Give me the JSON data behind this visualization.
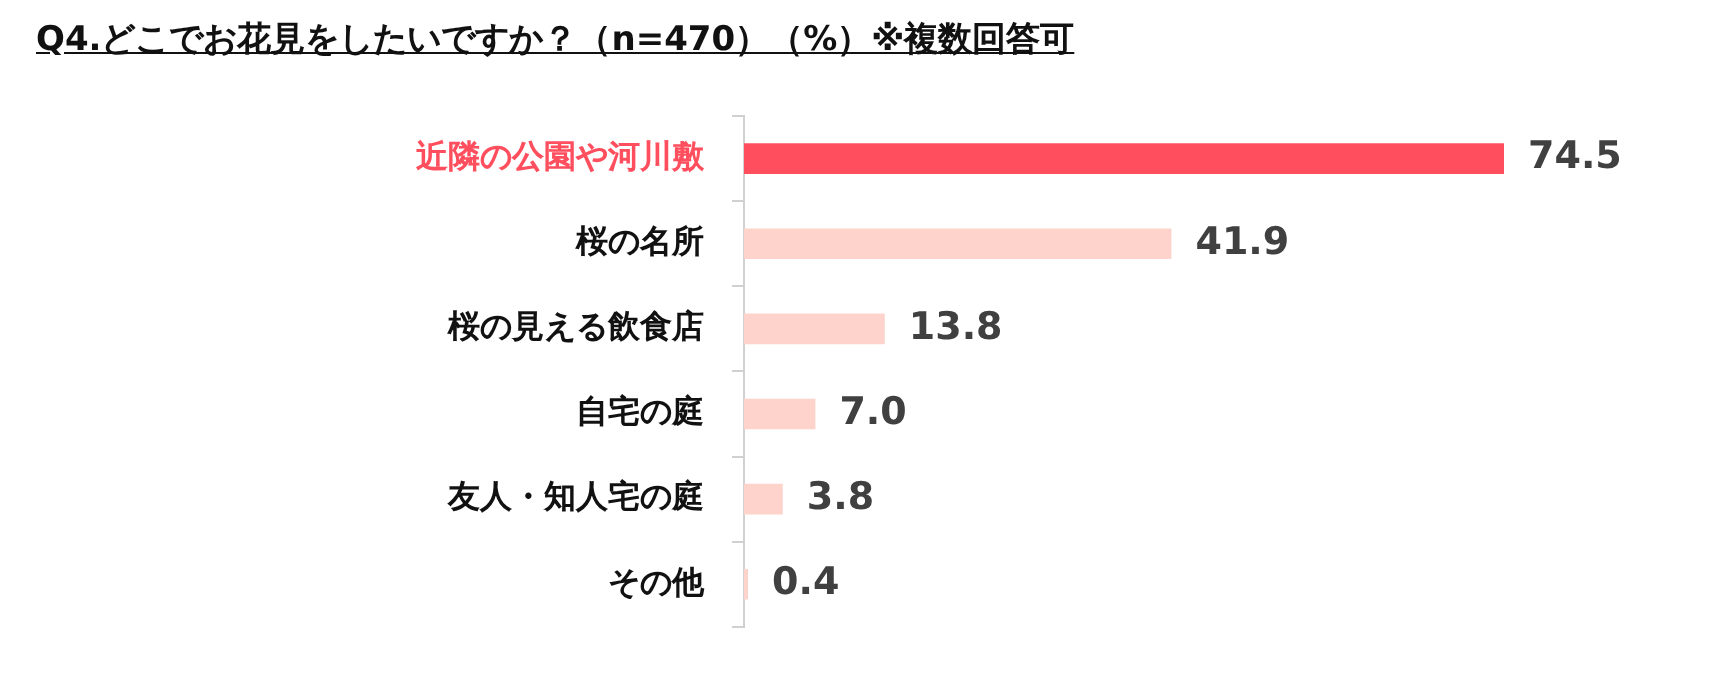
{
  "chart_data": {
    "type": "bar",
    "orientation": "horizontal",
    "title": "Q4.どこでお花見をしたいですか？（n=470）（%）※複数回答可",
    "categories": [
      "近隣の公園や河川敷",
      "桜の名所",
      "桜の見える飲食店",
      "自宅の庭",
      "友人・知人宅の庭",
      "その他"
    ],
    "values": [
      74.5,
      41.9,
      13.8,
      7.0,
      3.8,
      0.4
    ],
    "colors": [
      "#ff4f5e",
      "#fdd3cc",
      "#fdd3cc",
      "#fdd3cc",
      "#fdd3cc",
      "#fdd3cc"
    ],
    "value_labels": [
      "74.5",
      "41.9",
      "13.8",
      "7.0",
      "3.8",
      "0.4"
    ]
  }
}
